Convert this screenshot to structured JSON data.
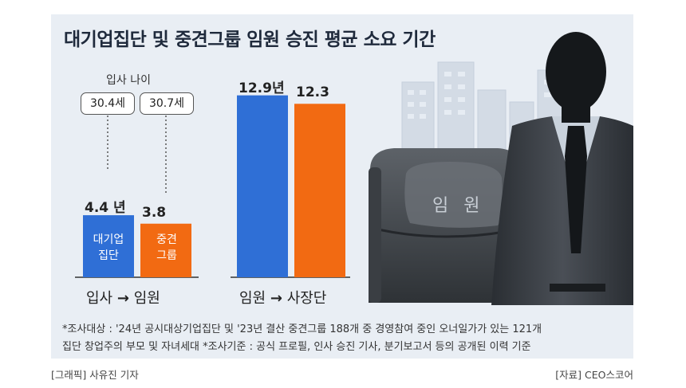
{
  "title": "대기업집단 및 중견그룹 임원 승진 평균 소요 기간",
  "entry_age": {
    "heading": "입사 나이",
    "large_group": "30.4세",
    "midsize_group": "30.7세"
  },
  "groups": [
    {
      "axis_label": "입사",
      "axis_label_2": "임원",
      "arrow": "→"
    },
    {
      "axis_label": "임원",
      "axis_label_2": "사장단",
      "arrow": "→"
    }
  ],
  "bars": [
    {
      "label_line1": "대기업",
      "label_line2": "집단",
      "value_text": "4.4 년"
    },
    {
      "label_line1": "중견",
      "label_line2": "그룹",
      "value_text": "3.8"
    },
    {
      "value_text": "12.9년"
    },
    {
      "value_text": "12.3"
    }
  ],
  "chair_label": "임 원",
  "footnote_line1": "*조사대상 : '24년 공시대상기업집단 및 '23년 결산 중견그룹 188개 중 경영참여 중인 오너일가가 있는 121개",
  "footnote_line2": "집단 창업주의 부모 및 자녀세대 *조사기준 : 공식 프로필, 인사 승진 기사, 분기보고서 등의 공개된 이력 기준",
  "credit_left": "[그래픽] 사유진 기자",
  "credit_right": "[자료] CEO스코어",
  "colors": {
    "large_group": "#2f6fd6",
    "midsize_group": "#f26a12",
    "panel": "#e9eef4"
  },
  "chart_data": {
    "type": "bar",
    "title": "대기업집단 및 중견그룹 임원 승진 평균 소요 기간",
    "categories": [
      "입사 → 임원",
      "임원 → 사장단"
    ],
    "series": [
      {
        "name": "대기업집단",
        "values": [
          4.4,
          12.9
        ]
      },
      {
        "name": "중견그룹",
        "values": [
          3.8,
          12.3
        ]
      }
    ],
    "unit": "년",
    "annotations": {
      "입사 나이": {
        "대기업집단": "30.4세",
        "중견그룹": "30.7세"
      }
    },
    "xlabel": "",
    "ylabel": "",
    "grid": false
  }
}
